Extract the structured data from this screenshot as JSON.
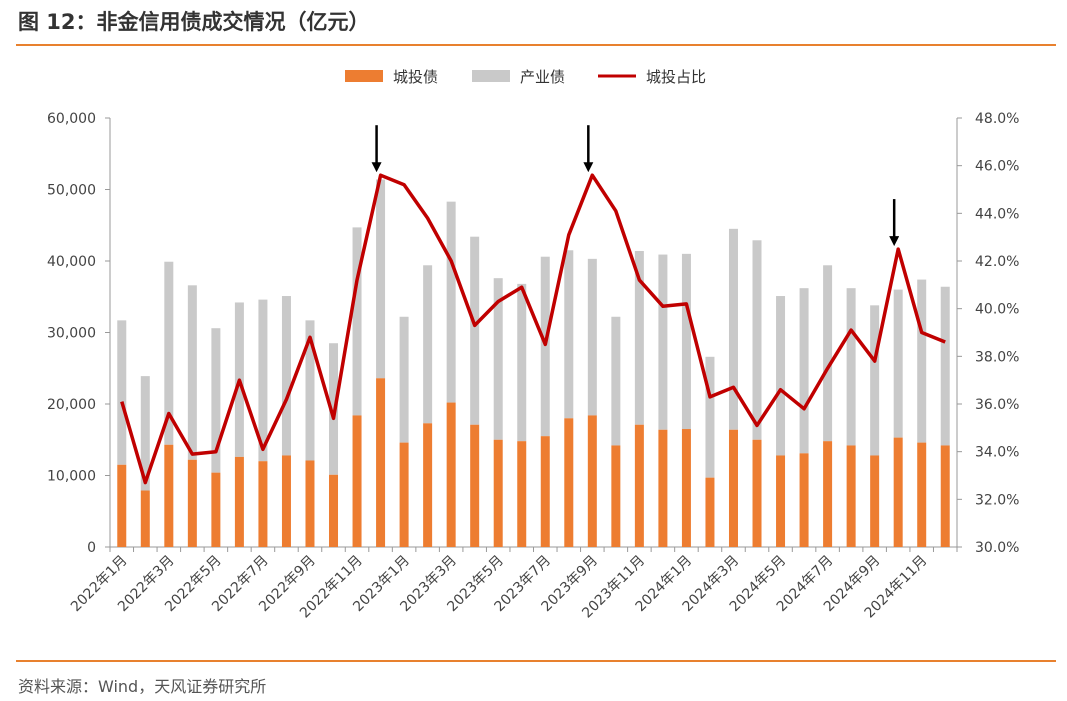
{
  "header": {
    "title": "图 12：非金信用债成交情况（亿元）"
  },
  "footer": {
    "source": "资料来源：Wind，天风证券研究所"
  },
  "colors": {
    "accent": "#e8812e",
    "bar_city": "#ed7d31",
    "bar_industry": "#c9c9c9",
    "line": "#c00000"
  },
  "chart_data": {
    "type": "bar",
    "title": "",
    "categories": [
      "2022年1月",
      "2022年2月",
      "2022年3月",
      "2022年4月",
      "2022年5月",
      "2022年6月",
      "2022年7月",
      "2022年8月",
      "2022年9月",
      "2022年10月",
      "2022年11月",
      "2022年12月",
      "2023年1月",
      "2023年2月",
      "2023年3月",
      "2023年4月",
      "2023年5月",
      "2023年6月",
      "2023年7月",
      "2023年8月",
      "2023年9月",
      "2023年10月",
      "2023年11月",
      "2023年12月",
      "2024年1月",
      "2024年2月",
      "2024年3月",
      "2024年4月",
      "2024年5月",
      "2024年6月",
      "2024年7月",
      "2024年8月",
      "2024年9月",
      "2024年10月",
      "2024年11月",
      "2024年12月"
    ],
    "x_tick_labels": [
      "2022年1月",
      "2022年3月",
      "2022年5月",
      "2022年7月",
      "2022年9月",
      "2022年11月",
      "2023年1月",
      "2023年3月",
      "2023年5月",
      "2023年7月",
      "2023年9月",
      "2023年11月",
      "2024年1月",
      "2024年3月",
      "2024年5月",
      "2024年7月",
      "2024年9月",
      "2024年11月"
    ],
    "series": [
      {
        "name": "城投债",
        "kind": "bar",
        "axis": "left",
        "values": [
          11500,
          7900,
          14300,
          12200,
          10400,
          12600,
          12000,
          12800,
          12100,
          10100,
          18400,
          23600,
          14600,
          17300,
          20200,
          17100,
          15000,
          14800,
          15500,
          18000,
          18400,
          14200,
          17100,
          16400,
          16500,
          9700,
          16400,
          15000,
          12800,
          13100,
          14800,
          14200,
          12800,
          15300,
          14600,
          14200
        ]
      },
      {
        "name": "产业债",
        "kind": "bar",
        "axis": "left",
        "values": [
          20200,
          16000,
          25600,
          24400,
          20200,
          21600,
          22600,
          22300,
          19600,
          18400,
          26300,
          27800,
          17600,
          22100,
          28100,
          26300,
          22600,
          22000,
          25100,
          23500,
          21900,
          18000,
          24300,
          24500,
          24500,
          16900,
          28100,
          27900,
          22300,
          23100,
          24600,
          22000,
          21000,
          20700,
          22800,
          22200
        ]
      },
      {
        "name": "城投占比",
        "kind": "line",
        "axis": "right",
        "values": [
          36.1,
          32.7,
          35.6,
          33.9,
          34.0,
          37.0,
          34.1,
          36.2,
          38.8,
          35.4,
          41.2,
          45.6,
          45.2,
          43.8,
          42.0,
          39.3,
          40.3,
          40.9,
          38.5,
          43.1,
          45.6,
          44.1,
          41.2,
          40.1,
          40.2,
          36.3,
          36.7,
          35.1,
          36.6,
          35.8,
          37.5,
          39.1,
          37.8,
          42.5,
          39.0,
          38.6
        ]
      }
    ],
    "ylim": [
      0,
      60000
    ],
    "y_ticks": [
      "0",
      "10,000",
      "20,000",
      "30,000",
      "40,000",
      "50,000",
      "60,000"
    ],
    "y2lim": [
      30,
      48
    ],
    "y2_ticks": [
      "30.0%",
      "32.0%",
      "34.0%",
      "36.0%",
      "38.0%",
      "40.0%",
      "42.0%",
      "44.0%",
      "46.0%",
      "48.0%"
    ],
    "legend": [
      "城投债",
      "产业债",
      "城投占比"
    ],
    "legend_position": "top-center",
    "annotations": [
      {
        "type": "arrow",
        "category": "2022年12月"
      },
      {
        "type": "arrow",
        "category": "2023年9月"
      },
      {
        "type": "arrow",
        "category": "2024年10月"
      }
    ],
    "grid": false
  }
}
